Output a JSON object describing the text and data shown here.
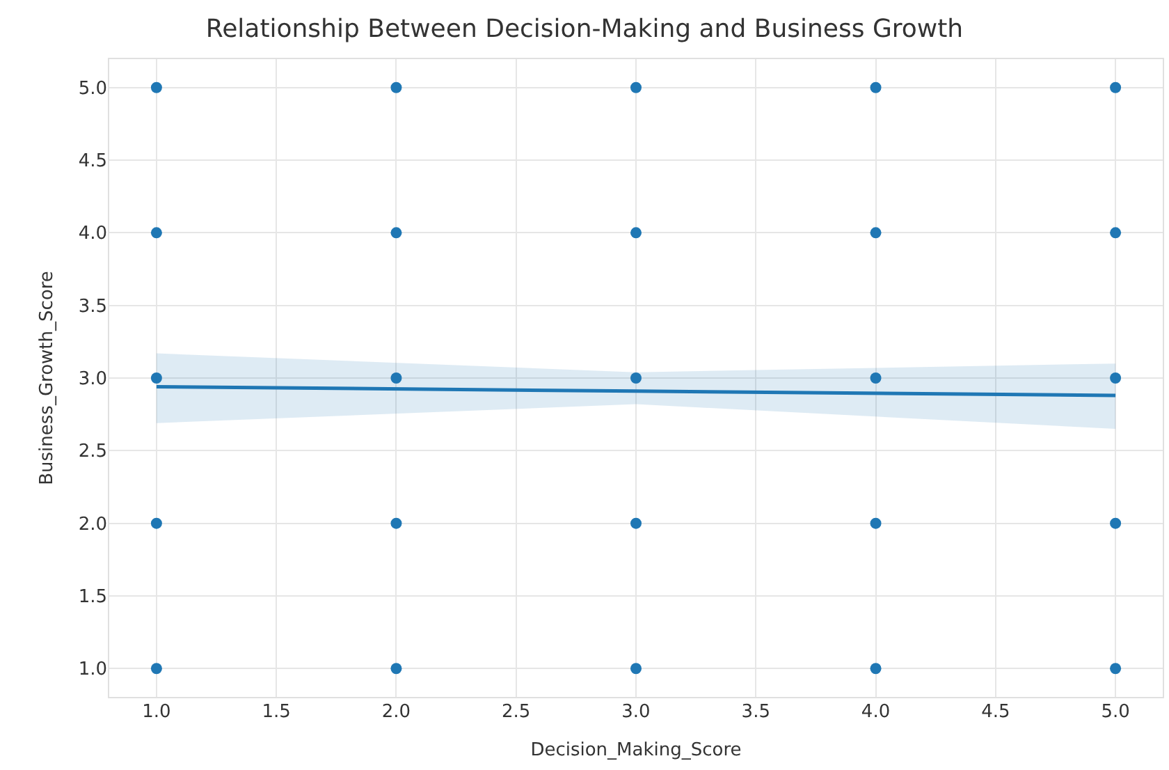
{
  "chart_data": {
    "type": "scatter",
    "title": "Relationship Between Decision-Making and Business Growth",
    "xlabel": "Decision_Making_Score",
    "ylabel": "Business_Growth_Score",
    "series": [
      {
        "color": "#1f77b4",
        "marker": "circle",
        "x": [
          1,
          1,
          1,
          1,
          1,
          2,
          2,
          2,
          2,
          2,
          3,
          3,
          3,
          3,
          3,
          4,
          4,
          4,
          4,
          4,
          5,
          5,
          5,
          5,
          5
        ],
        "values": [
          1,
          2,
          3,
          4,
          5,
          1,
          2,
          3,
          4,
          5,
          1,
          2,
          3,
          4,
          5,
          1,
          2,
          3,
          4,
          5,
          1,
          2,
          3,
          4,
          5
        ]
      },
      {
        "type": "line",
        "marker": "none",
        "color": "#1f77b4",
        "x": [
          1,
          3,
          5
        ],
        "values": [
          2.94,
          2.91,
          2.88
        ],
        "lower": [
          2.69,
          2.82,
          2.65
        ],
        "upper": [
          3.17,
          3.04,
          3.1
        ]
      }
    ],
    "xlim": [
      0.8,
      5.2
    ],
    "ylim": [
      0.8,
      5.2
    ],
    "xticks": [
      {
        "value": 1,
        "label": "1.0"
      },
      {
        "value": 1.5,
        "label": "1.5"
      },
      {
        "value": 2,
        "label": "2.0"
      },
      {
        "value": 2.5,
        "label": "2.5"
      },
      {
        "value": 3,
        "label": "3.0"
      },
      {
        "value": 3.5,
        "label": "3.5"
      },
      {
        "value": 4,
        "label": "4.0"
      },
      {
        "value": 4.5,
        "label": "4.5"
      },
      {
        "value": 5,
        "label": "5.0"
      }
    ],
    "yticks": [
      {
        "value": 1,
        "label": "1.0"
      },
      {
        "value": 1.5,
        "label": "1.5"
      },
      {
        "value": 2,
        "label": "2.0"
      },
      {
        "value": 2.5,
        "label": "2.5"
      },
      {
        "value": 3,
        "label": "3.0"
      },
      {
        "value": 3.5,
        "label": "3.5"
      },
      {
        "value": 4,
        "label": "4.0"
      },
      {
        "value": 4.5,
        "label": "4.5"
      },
      {
        "value": 5,
        "label": "5.0"
      }
    ],
    "grid": true
  }
}
